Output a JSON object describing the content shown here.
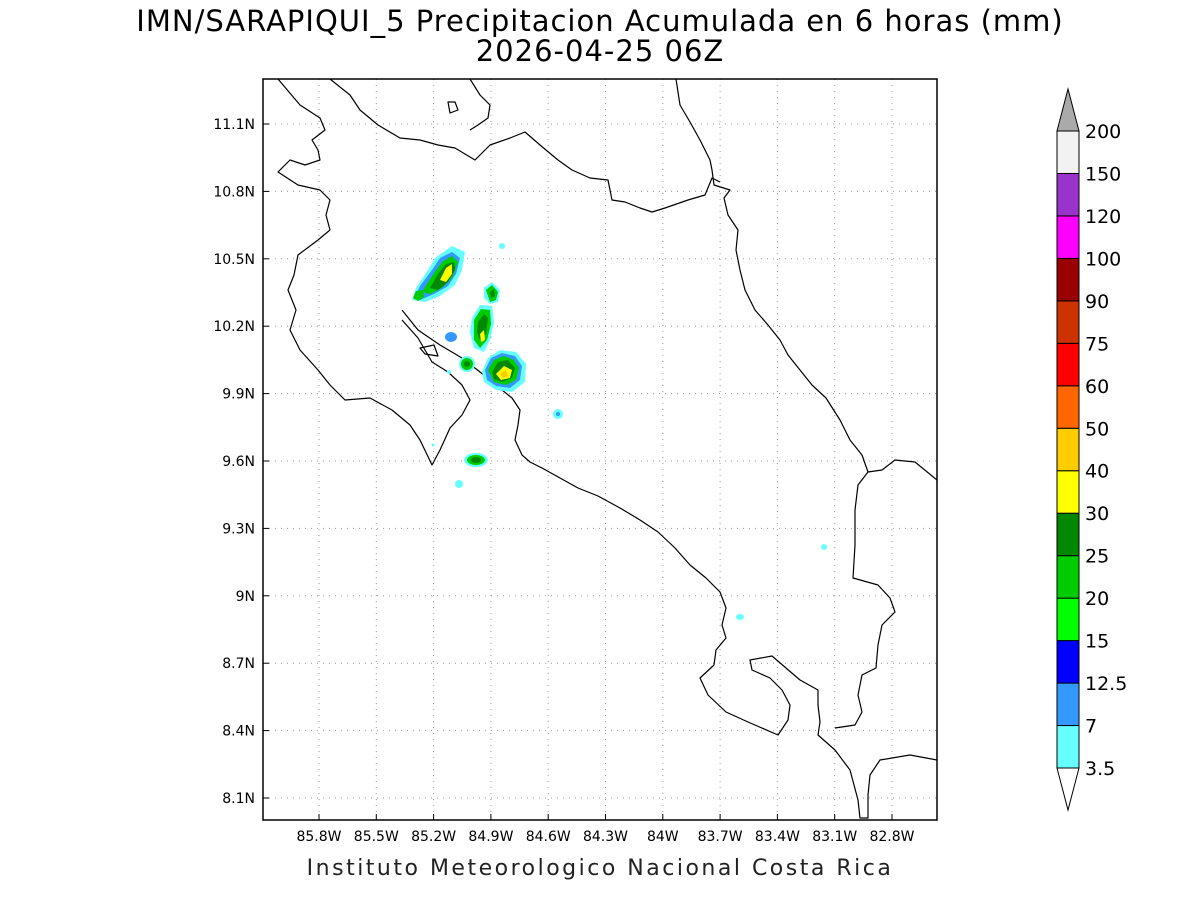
{
  "title": {
    "line1": "IMN/SARAPIQUI_5 Precipitacion Acumulada en 6 horas (mm)",
    "line2": "2026-04-25 06Z"
  },
  "footer": "Instituto Meteorologico Nacional Costa Rica",
  "axes": {
    "lon_labels": [
      "85.8W",
      "85.5W",
      "85.2W",
      "84.9W",
      "84.6W",
      "84.3W",
      "84W",
      "83.7W",
      "83.4W",
      "83.1W",
      "82.8W"
    ],
    "lat_labels": [
      "11.1N",
      "10.8N",
      "10.5N",
      "10.2N",
      "9.9N",
      "9.6N",
      "9.3N",
      "9N",
      "8.7N",
      "8.4N",
      "8.1N"
    ],
    "lon_values": [
      -85.8,
      -85.5,
      -85.2,
      -84.9,
      -84.6,
      -84.3,
      -84.0,
      -83.7,
      -83.4,
      -83.1,
      -82.8
    ],
    "lat_values": [
      11.1,
      10.8,
      10.5,
      10.2,
      9.9,
      9.6,
      9.3,
      9.0,
      8.7,
      8.4,
      8.1
    ],
    "lon_range": [
      -86.0,
      -82.5
    ],
    "lat_range": [
      8.0,
      11.3
    ],
    "grid": true
  },
  "legend": {
    "labels": [
      "3.5",
      "7",
      "12.5",
      "15",
      "20",
      "25",
      "30",
      "40",
      "50",
      "60",
      "75",
      "90",
      "100",
      "120",
      "150",
      "200"
    ],
    "colors": [
      "#66ffff",
      "#3399ff",
      "#0000ff",
      "#00ff00",
      "#00cc00",
      "#008800",
      "#ffff00",
      "#ffcc00",
      "#ff6600",
      "#ff0000",
      "#cc3300",
      "#990000",
      "#ff00ff",
      "#9933cc",
      "#f2f2f2",
      "#aaaaaa"
    ]
  }
}
